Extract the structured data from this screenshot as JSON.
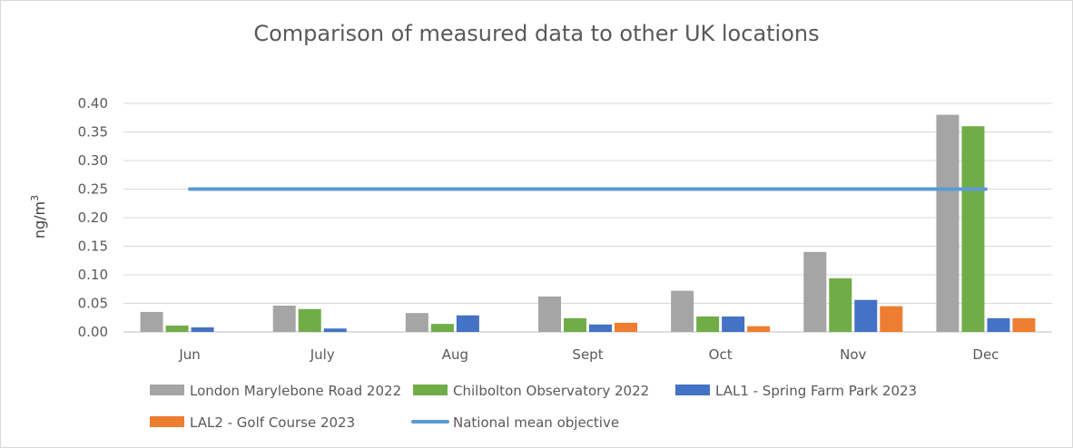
{
  "chart_data": {
    "type": "bar",
    "title": "Comparison of measured data to other UK locations",
    "xlabel": "",
    "ylabel": "ng/m",
    "ylabel_superscript": "3",
    "ylim": [
      0,
      0.4
    ],
    "yticks": [
      "0.00",
      "0.05",
      "0.10",
      "0.15",
      "0.20",
      "0.25",
      "0.30",
      "0.35",
      "0.40"
    ],
    "categories": [
      "Jun",
      "July",
      "Aug",
      "Sept",
      "Oct",
      "Nov",
      "Dec"
    ],
    "series": [
      {
        "name": "London Marylebone Road 2022",
        "color": "#a5a5a5",
        "values": [
          0.035,
          0.046,
          0.033,
          0.062,
          0.072,
          0.14,
          0.38
        ]
      },
      {
        "name": "Chilbolton Observatory 2022",
        "color": "#70ad47",
        "values": [
          0.011,
          0.04,
          0.014,
          0.024,
          0.027,
          0.094,
          0.36
        ]
      },
      {
        "name": "LAL1 - Spring Farm Park 2023",
        "color": "#4472c4",
        "values": [
          0.008,
          0.006,
          0.029,
          0.013,
          0.027,
          0.056,
          0.024
        ]
      },
      {
        "name": "LAL2 - Golf Course 2023",
        "color": "#ed7d31",
        "values": [
          null,
          null,
          null,
          0.016,
          0.01,
          0.045,
          0.024
        ]
      }
    ],
    "line": {
      "name": "National mean objective",
      "color": "#5b9bd5",
      "value": 0.25
    },
    "grid": true,
    "legend": "bottom"
  }
}
